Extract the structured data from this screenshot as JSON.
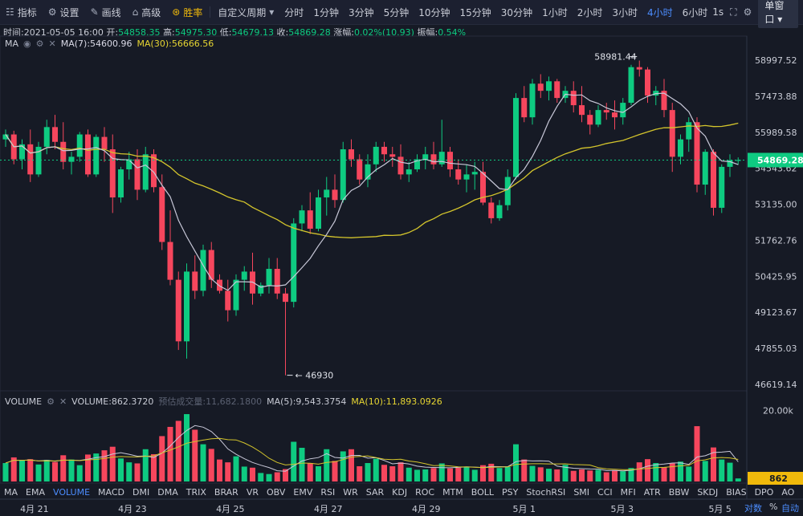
{
  "toolbar": {
    "indicators": "指标",
    "settings": "设置",
    "draw": "画线",
    "advanced": "高级",
    "winrate": "胜率",
    "custom_period": "自定义周期",
    "periods": [
      "分时",
      "1分钟",
      "3分钟",
      "5分钟",
      "10分钟",
      "15分钟",
      "30分钟",
      "1小时",
      "2小时",
      "3小时",
      "4小时",
      "6小时"
    ],
    "active_period": "4小时",
    "interval_1s": "1s",
    "window_mode": "单窗口"
  },
  "info": {
    "time_label": "时间:",
    "time": "2021-05-05 16:00",
    "open_label": "开:",
    "open": "54858.35",
    "high_label": "高:",
    "high": "54975.30",
    "low_label": "低:",
    "low": "54679.13",
    "close_label": "收:",
    "close": "54869.28",
    "change_label": "涨幅:",
    "change": "0.02%(10.93)",
    "amplitude_label": "振幅:",
    "amplitude": "0.54%"
  },
  "legend": {
    "ma_label": "MA",
    "ma7": "MA(7):54600.96",
    "ma30": "MA(30):56666.56"
  },
  "volume_legend": {
    "label": "VOLUME",
    "volume": "VOLUME:862.3720",
    "forecast": "预估成交量:11,682.1800",
    "ma5": "MA(5):9,543.3754",
    "ma10": "MA(10):11,893.0926"
  },
  "indicator_tabs": [
    "MA",
    "EMA",
    "VOLUME",
    "MACD",
    "DMI",
    "DMA",
    "TRIX",
    "BRAR",
    "VR",
    "OBV",
    "EMV",
    "RSI",
    "WR",
    "SAR",
    "KDJ",
    "ROC",
    "MTM",
    "BOLL",
    "PSY",
    "StochRSI",
    "SMI",
    "CCI",
    "MFI",
    "ATR",
    "BBW",
    "SKDJ",
    "BIAS",
    "DPO",
    "AO"
  ],
  "active_indicators": [
    "VOLUME"
  ],
  "axis_modes": {
    "log": "对数",
    "percent": "%",
    "auto": "自动"
  },
  "chart_data": {
    "type": "candlestick",
    "price_axis_ticks": [
      "58997.52",
      "57473.88",
      "55989.58",
      "54543.62",
      "53135.00",
      "51762.76",
      "50425.95",
      "49123.67",
      "47855.03",
      "46619.14"
    ],
    "volume_axis_ticks": [
      "20.00k"
    ],
    "current_price": "54869.28",
    "current_volume": "862",
    "annotations": {
      "high": "58981.44",
      "low": "46930"
    },
    "date_labels": [
      "4月 21",
      "4月 23",
      "4月 25",
      "4月 27",
      "4月 29",
      "5月 1",
      "5月 3",
      "5月 5"
    ],
    "candles": [
      [
        55700,
        56100,
        55400,
        55900
      ],
      [
        55900,
        56050,
        54700,
        54900
      ],
      [
        54900,
        55700,
        54500,
        55500
      ],
      [
        55500,
        56100,
        54000,
        54300
      ],
      [
        54300,
        55600,
        54200,
        55400
      ],
      [
        55400,
        56500,
        55100,
        56200
      ],
      [
        56200,
        56700,
        55300,
        55600
      ],
      [
        55600,
        56400,
        54500,
        54800
      ],
      [
        54800,
        55200,
        54300,
        55000
      ],
      [
        55000,
        56000,
        54800,
        55900
      ],
      [
        55900,
        56100,
        54200,
        54300
      ],
      [
        54300,
        55900,
        54200,
        55800
      ],
      [
        55800,
        56200,
        54800,
        55300
      ],
      [
        55300,
        55900,
        52800,
        53400
      ],
      [
        53400,
        54600,
        53200,
        54500
      ],
      [
        54500,
        55200,
        54100,
        54900
      ],
      [
        54900,
        55300,
        53300,
        53700
      ],
      [
        53700,
        55400,
        53600,
        55100
      ],
      [
        55100,
        55300,
        53600,
        53800
      ],
      [
        53800,
        54300,
        51400,
        51700
      ],
      [
        51700,
        52900,
        50100,
        50300
      ],
      [
        50300,
        50600,
        47800,
        48100
      ],
      [
        48100,
        50900,
        47500,
        50600
      ],
      [
        50600,
        51200,
        49600,
        49900
      ],
      [
        49900,
        51600,
        49700,
        51400
      ],
      [
        51400,
        51700,
        50000,
        50300
      ],
      [
        50300,
        50500,
        49800,
        49900
      ],
      [
        49900,
        50300,
        48800,
        49200
      ],
      [
        49200,
        50500,
        49000,
        50300
      ],
      [
        50300,
        50800,
        49900,
        50600
      ],
      [
        50600,
        51300,
        49400,
        49800
      ],
      [
        49800,
        50200,
        49700,
        50100
      ],
      [
        50100,
        51100,
        49800,
        50700
      ],
      [
        50700,
        51100,
        49600,
        49800
      ],
      [
        49800,
        50000,
        46930,
        49500
      ],
      [
        49500,
        52600,
        49300,
        52400
      ],
      [
        52400,
        53100,
        52100,
        52900
      ],
      [
        52900,
        53600,
        52000,
        52200
      ],
      [
        52200,
        53700,
        52100,
        53400
      ],
      [
        53400,
        54200,
        52700,
        53700
      ],
      [
        53700,
        54300,
        53000,
        53300
      ],
      [
        53300,
        55600,
        53200,
        55300
      ],
      [
        55300,
        55700,
        54600,
        54900
      ],
      [
        54900,
        55100,
        53900,
        54100
      ],
      [
        54100,
        55100,
        53800,
        54700
      ],
      [
        54700,
        55600,
        54400,
        55400
      ],
      [
        55400,
        55600,
        54800,
        55100
      ],
      [
        55100,
        55400,
        54600,
        55000
      ],
      [
        55000,
        55500,
        54100,
        54300
      ],
      [
        54300,
        54800,
        54000,
        54500
      ],
      [
        54500,
        55100,
        54400,
        54900
      ],
      [
        54900,
        55400,
        54500,
        55100
      ],
      [
        55100,
        55600,
        54500,
        54700
      ],
      [
        54700,
        56500,
        54600,
        55200
      ],
      [
        55200,
        55400,
        54200,
        54500
      ],
      [
        54500,
        54900,
        53900,
        54100
      ],
      [
        54100,
        54700,
        53600,
        54300
      ],
      [
        54300,
        54800,
        53700,
        54400
      ],
      [
        54400,
        54800,
        53100,
        53200
      ],
      [
        53200,
        53400,
        52400,
        52600
      ],
      [
        52600,
        53300,
        52500,
        53100
      ],
      [
        53100,
        54500,
        52900,
        54200
      ],
      [
        54200,
        57600,
        54100,
        57400
      ],
      [
        57400,
        57900,
        56400,
        56600
      ],
      [
        56600,
        58200,
        56300,
        58000
      ],
      [
        58000,
        58400,
        57400,
        57700
      ],
      [
        57700,
        58300,
        57300,
        58100
      ],
      [
        58100,
        58200,
        57200,
        57400
      ],
      [
        57400,
        57900,
        57200,
        57700
      ],
      [
        57700,
        58100,
        56800,
        57100
      ],
      [
        57100,
        57900,
        56400,
        56700
      ],
      [
        56700,
        56900,
        55900,
        56300
      ],
      [
        56300,
        57100,
        56200,
        56900
      ],
      [
        56900,
        57200,
        56500,
        56800
      ],
      [
        56800,
        57300,
        56100,
        56600
      ],
      [
        56600,
        57400,
        56300,
        57200
      ],
      [
        57200,
        58800,
        57100,
        58700
      ],
      [
        58700,
        58981,
        58300,
        58600
      ],
      [
        58600,
        58700,
        57200,
        57500
      ],
      [
        57500,
        57900,
        57100,
        57700
      ],
      [
        57700,
        58200,
        56600,
        56900
      ],
      [
        56900,
        57200,
        54400,
        55000
      ],
      [
        55000,
        55900,
        54700,
        55700
      ],
      [
        55700,
        56600,
        55200,
        56400
      ],
      [
        56400,
        56600,
        53600,
        53900
      ],
      [
        53900,
        55300,
        53500,
        55200
      ],
      [
        55200,
        55300,
        52700,
        53000
      ],
      [
        53000,
        54700,
        52800,
        54600
      ],
      [
        54600,
        55100,
        54200,
        54858
      ],
      [
        54858,
        54975,
        54679,
        54869
      ]
    ],
    "volumes": [
      5200,
      6800,
      5900,
      6300,
      4800,
      6100,
      5500,
      7400,
      6200,
      4600,
      7600,
      7900,
      8800,
      9800,
      6500,
      5400,
      5100,
      9100,
      7700,
      12800,
      15400,
      17100,
      19000,
      14600,
      10500,
      9200,
      6200,
      5400,
      7100,
      4200,
      3900,
      2400,
      2100,
      2600,
      3500,
      11200,
      9500,
      5200,
      4300,
      9100,
      5800,
      8500,
      9100,
      4300,
      5200,
      6400,
      4700,
      4300,
      5400,
      3900,
      3300,
      3400,
      3800,
      5100,
      3700,
      3900,
      4200,
      3300,
      4600,
      5000,
      3800,
      4100,
      10500,
      6200,
      4400,
      4000,
      3600,
      3400,
      4700,
      3000,
      3400,
      3100,
      3300,
      2600,
      3200,
      2900,
      3800,
      5400,
      6300,
      5200,
      4000,
      5100,
      5600,
      4200,
      15600,
      5800,
      9600,
      6200,
      5300,
      862
    ]
  }
}
